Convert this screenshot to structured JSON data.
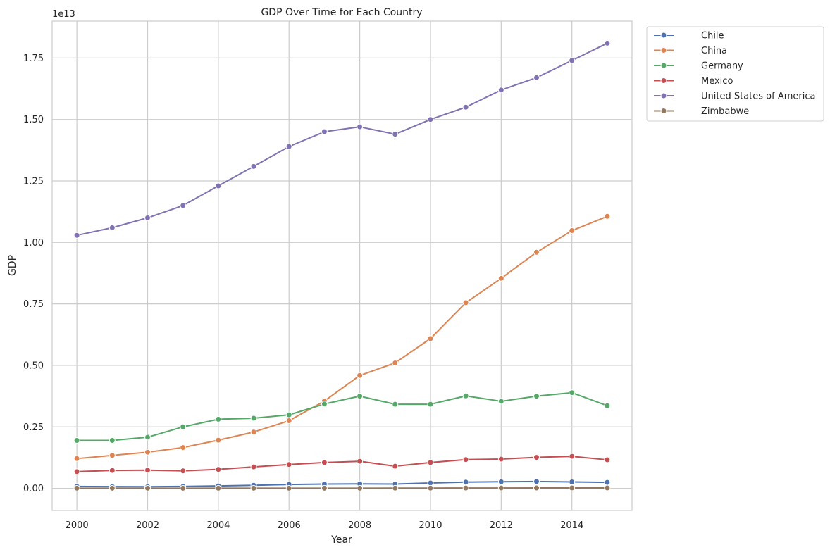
{
  "chart_data": {
    "type": "line",
    "title": "GDP Over Time for Each Country",
    "xlabel": "Year",
    "ylabel": "GDP",
    "y_offset_label": "1e13",
    "xlim": [
      1999.3,
      2015.7
    ],
    "ylim": [
      -0.09,
      1.9
    ],
    "x_ticks": [
      2000,
      2002,
      2004,
      2006,
      2008,
      2010,
      2012,
      2014
    ],
    "x_tick_labels": [
      "2000",
      "2002",
      "2004",
      "2006",
      "2008",
      "2010",
      "2012",
      "2014"
    ],
    "y_ticks": [
      0,
      0.25,
      0.5,
      0.75,
      1.0,
      1.25,
      1.5,
      1.75
    ],
    "y_tick_labels": [
      "0.00",
      "0.25",
      "0.50",
      "0.75",
      "1.00",
      "1.25",
      "1.50",
      "1.75"
    ],
    "grid": true,
    "legend_position": "outside-top-right",
    "x": [
      2000,
      2001,
      2002,
      2003,
      2004,
      2005,
      2006,
      2007,
      2008,
      2009,
      2010,
      2011,
      2012,
      2013,
      2014,
      2015
    ],
    "series": [
      {
        "name": "Chile",
        "color": "#4c72b0",
        "values": [
          0.0077,
          0.0069,
          0.0068,
          0.0076,
          0.0099,
          0.0123,
          0.0155,
          0.0173,
          0.018,
          0.0172,
          0.0218,
          0.0251,
          0.0267,
          0.0278,
          0.026,
          0.0243
        ]
      },
      {
        "name": "China",
        "color": "#dd8452",
        "values": [
          0.121,
          0.134,
          0.147,
          0.166,
          0.196,
          0.229,
          0.275,
          0.355,
          0.459,
          0.51,
          0.609,
          0.755,
          0.854,
          0.96,
          1.048,
          1.106
        ]
      },
      {
        "name": "Germany",
        "color": "#55a868",
        "values": [
          0.195,
          0.195,
          0.208,
          0.25,
          0.281,
          0.285,
          0.299,
          0.343,
          0.375,
          0.342,
          0.342,
          0.376,
          0.354,
          0.375,
          0.389,
          0.336
        ]
      },
      {
        "name": "Mexico",
        "color": "#c44e52",
        "values": [
          0.068,
          0.073,
          0.074,
          0.071,
          0.077,
          0.087,
          0.097,
          0.105,
          0.11,
          0.09,
          0.105,
          0.117,
          0.119,
          0.126,
          0.13,
          0.116
        ]
      },
      {
        "name": "United States of America",
        "color": "#8172b3",
        "values": [
          1.029,
          1.06,
          1.1,
          1.15,
          1.23,
          1.309,
          1.39,
          1.45,
          1.47,
          1.44,
          1.5,
          1.55,
          1.62,
          1.67,
          1.74,
          1.81
        ]
      },
      {
        "name": "Zimbabwe",
        "color": "#937860",
        "values": [
          0.0007,
          0.0007,
          0.0006,
          0.0006,
          0.0006,
          0.0006,
          0.0005,
          0.0005,
          0.0004,
          0.0008,
          0.001,
          0.0012,
          0.0014,
          0.0015,
          0.0016,
          0.0016
        ]
      }
    ]
  }
}
